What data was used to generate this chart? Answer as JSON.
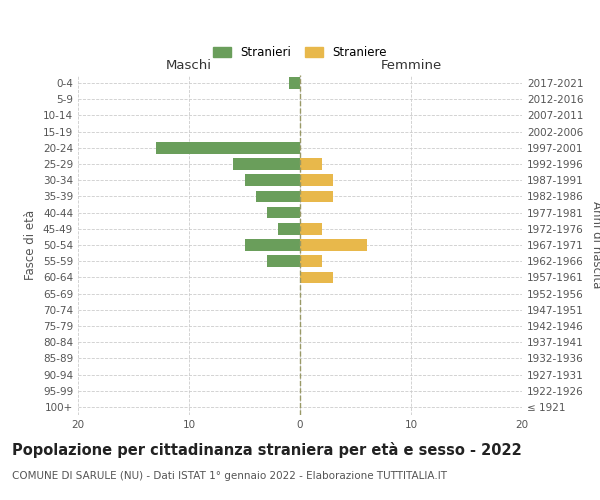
{
  "age_groups": [
    "100+",
    "95-99",
    "90-94",
    "85-89",
    "80-84",
    "75-79",
    "70-74",
    "65-69",
    "60-64",
    "55-59",
    "50-54",
    "45-49",
    "40-44",
    "35-39",
    "30-34",
    "25-29",
    "20-24",
    "15-19",
    "10-14",
    "5-9",
    "0-4"
  ],
  "birth_years": [
    "≤ 1921",
    "1922-1926",
    "1927-1931",
    "1932-1936",
    "1937-1941",
    "1942-1946",
    "1947-1951",
    "1952-1956",
    "1957-1961",
    "1962-1966",
    "1967-1971",
    "1972-1976",
    "1977-1981",
    "1982-1986",
    "1987-1991",
    "1992-1996",
    "1997-2001",
    "2002-2006",
    "2007-2011",
    "2012-2016",
    "2017-2021"
  ],
  "males": [
    0,
    0,
    0,
    0,
    0,
    0,
    0,
    0,
    0,
    3,
    5,
    2,
    3,
    4,
    5,
    6,
    13,
    0,
    0,
    0,
    1
  ],
  "females": [
    0,
    0,
    0,
    0,
    0,
    0,
    0,
    0,
    3,
    2,
    6,
    2,
    0,
    3,
    3,
    2,
    0,
    0,
    0,
    0,
    0
  ],
  "male_color": "#6a9e5b",
  "female_color": "#e8b84b",
  "male_label": "Stranieri",
  "female_label": "Straniere",
  "title": "Popolazione per cittadinanza straniera per età e sesso - 2022",
  "subtitle": "COMUNE DI SARULE (NU) - Dati ISTAT 1° gennaio 2022 - Elaborazione TUTTITALIA.IT",
  "left_axis_label": "Fasce di età",
  "right_axis_label": "Anni di nascita",
  "left_header": "Maschi",
  "right_header": "Femmine",
  "xlim": 20,
  "background_color": "#ffffff",
  "grid_color": "#cccccc",
  "center_line_color": "#999966",
  "title_fontsize": 10.5,
  "subtitle_fontsize": 7.5,
  "tick_fontsize": 7.5,
  "label_fontsize": 8.5,
  "header_fontsize": 9.5
}
